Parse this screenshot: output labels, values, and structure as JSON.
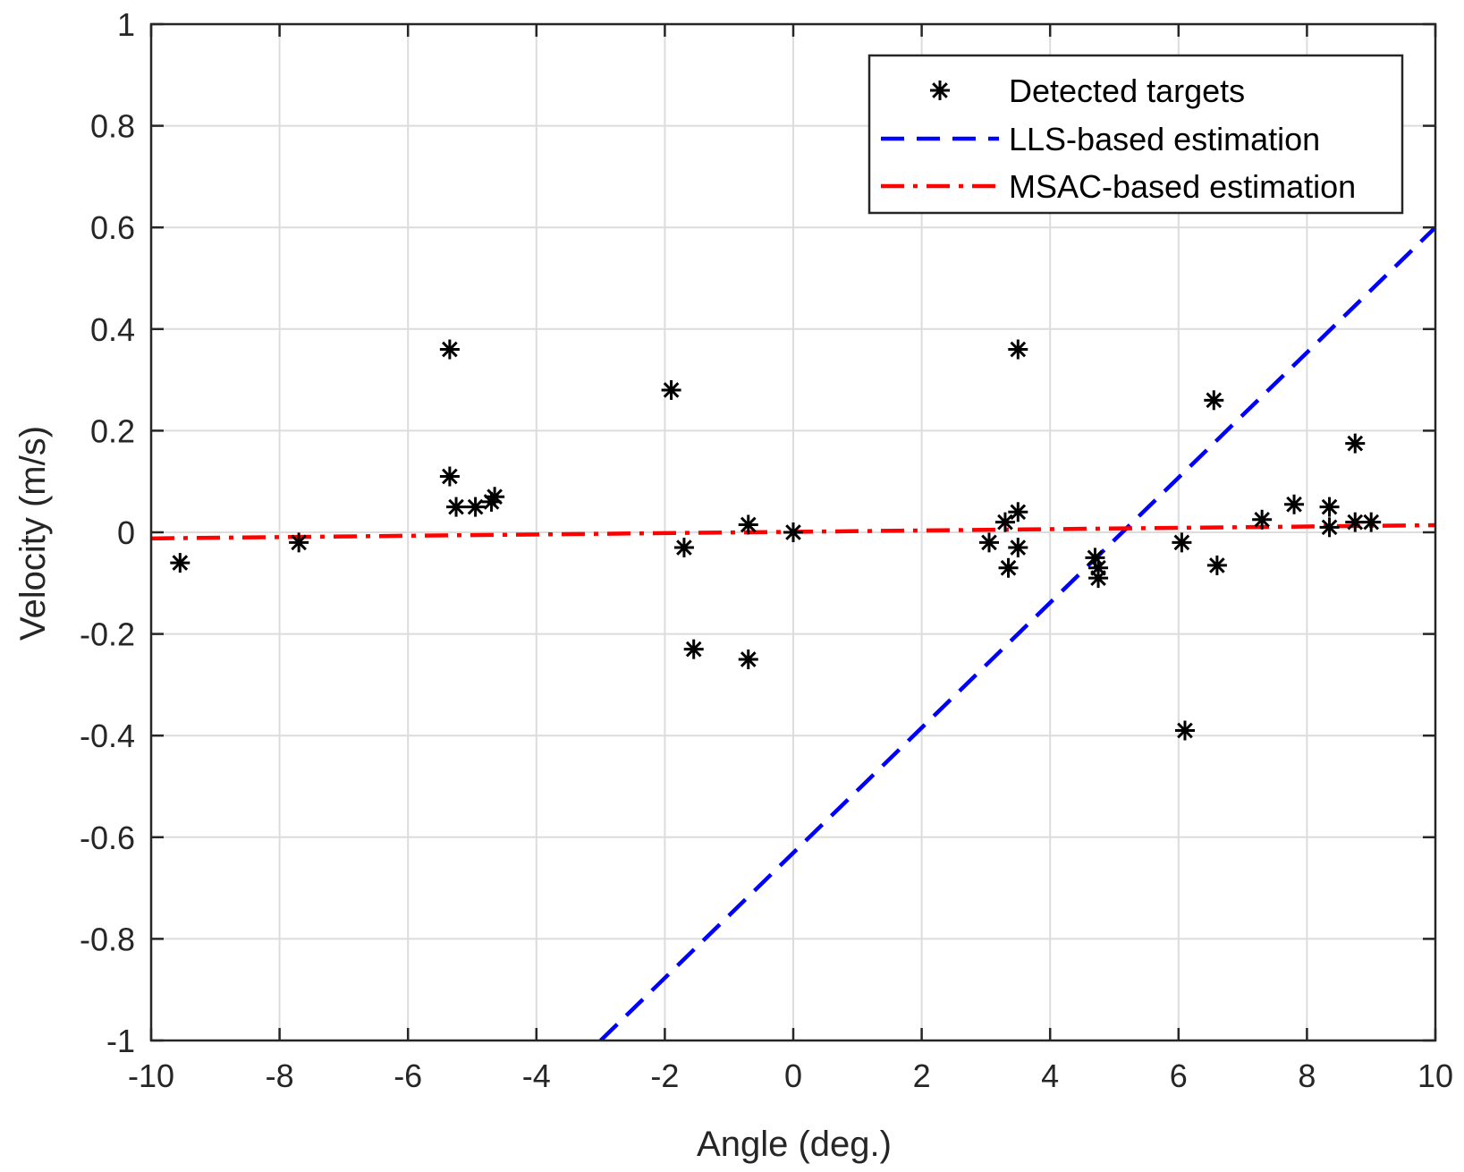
{
  "chart_data": {
    "type": "scatter",
    "title": "",
    "xlabel": "Angle (deg.)",
    "ylabel": "Velocity (m/s)",
    "xlim": [
      -10,
      10
    ],
    "ylim": [
      -1,
      1
    ],
    "xticks": [
      -10,
      -8,
      -6,
      -4,
      -2,
      0,
      2,
      4,
      6,
      8,
      10
    ],
    "yticks": [
      -1,
      -0.8,
      -0.6,
      -0.4,
      -0.2,
      0,
      0.2,
      0.4,
      0.6,
      0.8,
      1
    ],
    "x_tick_labels": [
      "-10",
      "-8",
      "-6",
      "-4",
      "-2",
      "0",
      "2",
      "4",
      "6",
      "8",
      "10"
    ],
    "y_tick_labels": [
      "-1",
      "-0.8",
      "-0.6",
      "-0.4",
      "-0.2",
      "0",
      "0.2",
      "0.4",
      "0.6",
      "0.8",
      "1"
    ],
    "grid": true,
    "legend_position": "top-right",
    "series": [
      {
        "name": "Detected targets",
        "kind": "markers",
        "marker": "asterisk",
        "color": "#000000",
        "points": [
          [
            -9.55,
            -0.06
          ],
          [
            -7.7,
            -0.02
          ],
          [
            -5.35,
            0.36
          ],
          [
            -5.35,
            0.11
          ],
          [
            -5.25,
            0.05
          ],
          [
            -4.95,
            0.05
          ],
          [
            -4.7,
            0.06
          ],
          [
            -4.65,
            0.07
          ],
          [
            -1.9,
            0.28
          ],
          [
            -1.7,
            -0.03
          ],
          [
            -1.55,
            -0.23
          ],
          [
            -0.7,
            0.015
          ],
          [
            -0.7,
            -0.25
          ],
          [
            0.0,
            0.0
          ],
          [
            3.05,
            -0.02
          ],
          [
            3.3,
            0.02
          ],
          [
            3.35,
            -0.07
          ],
          [
            3.5,
            0.36
          ],
          [
            3.5,
            0.04
          ],
          [
            3.5,
            -0.03
          ],
          [
            4.7,
            -0.05
          ],
          [
            4.75,
            -0.09
          ],
          [
            4.75,
            -0.07
          ],
          [
            6.05,
            -0.02
          ],
          [
            6.1,
            -0.39
          ],
          [
            6.55,
            0.26
          ],
          [
            6.6,
            -0.065
          ],
          [
            7.3,
            0.025
          ],
          [
            7.8,
            0.055
          ],
          [
            8.35,
            0.05
          ],
          [
            8.35,
            0.01
          ],
          [
            8.75,
            0.175
          ],
          [
            8.75,
            0.02
          ],
          [
            9.0,
            0.02
          ]
        ]
      },
      {
        "name": "LLS-based estimation",
        "kind": "line",
        "style": "dashed",
        "color": "#0000ff",
        "points": [
          [
            -3.0,
            -1.0
          ],
          [
            10.0,
            0.6
          ]
        ]
      },
      {
        "name": "MSAC-based estimation",
        "kind": "line",
        "style": "dashdot",
        "color": "#ff0000",
        "points": [
          [
            -10.0,
            -0.012
          ],
          [
            10.0,
            0.014
          ]
        ]
      }
    ]
  }
}
